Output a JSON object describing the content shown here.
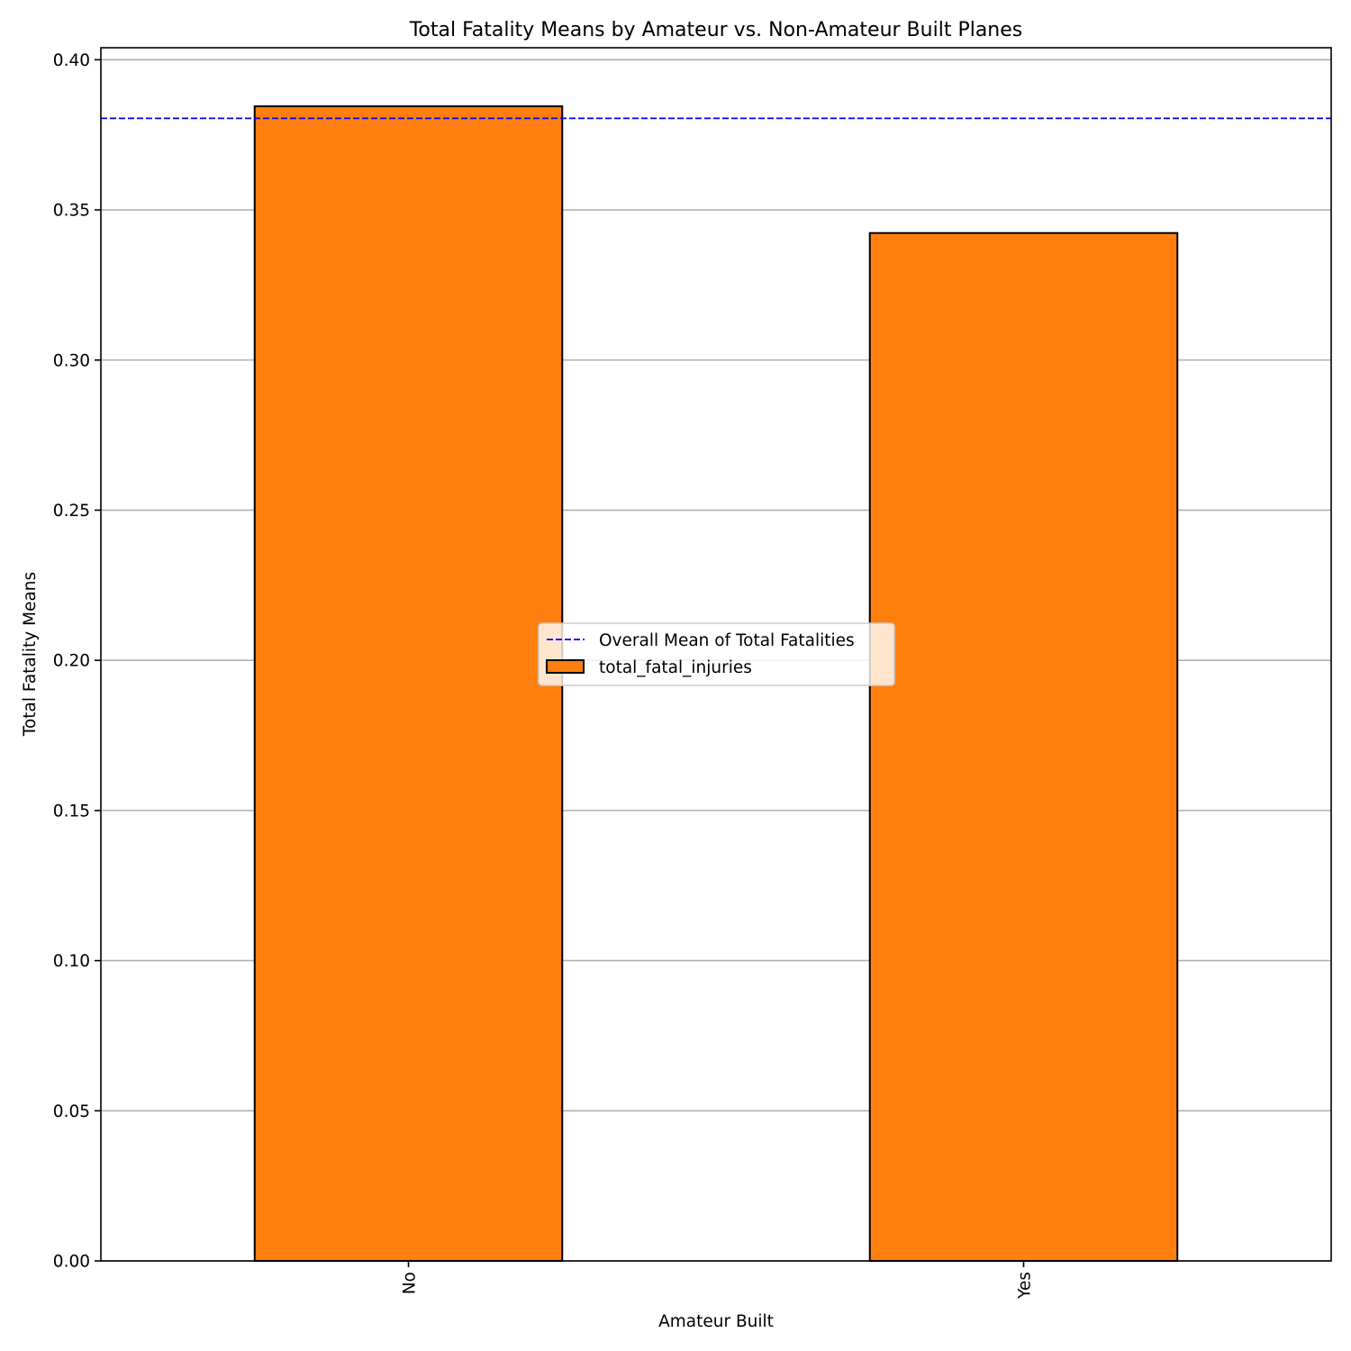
{
  "chart_data": {
    "type": "bar",
    "title": "Total Fatality Means by Amateur vs. Non-Amateur Built Planes",
    "xlabel": "Amateur Built",
    "ylabel": "Total Fatality Means",
    "categories": [
      "No",
      "Yes"
    ],
    "series": [
      {
        "name": "total_fatal_injuries",
        "values": [
          0.3845,
          0.3423
        ],
        "color": "#ff7f0e"
      }
    ],
    "reference_line": {
      "name": "Overall Mean of Total Fatalities",
      "value": 0.3805,
      "color": "#0000ff",
      "style": "dashed"
    },
    "ylim": [
      0,
      0.404
    ],
    "yticks": [
      "0.00",
      "0.05",
      "0.10",
      "0.15",
      "0.20",
      "0.25",
      "0.30",
      "0.35",
      "0.40"
    ],
    "ytick_values": [
      0,
      0.05,
      0.1,
      0.15,
      0.2,
      0.25,
      0.3,
      0.35,
      0.4
    ],
    "grid": "y",
    "legend_position": "center"
  }
}
